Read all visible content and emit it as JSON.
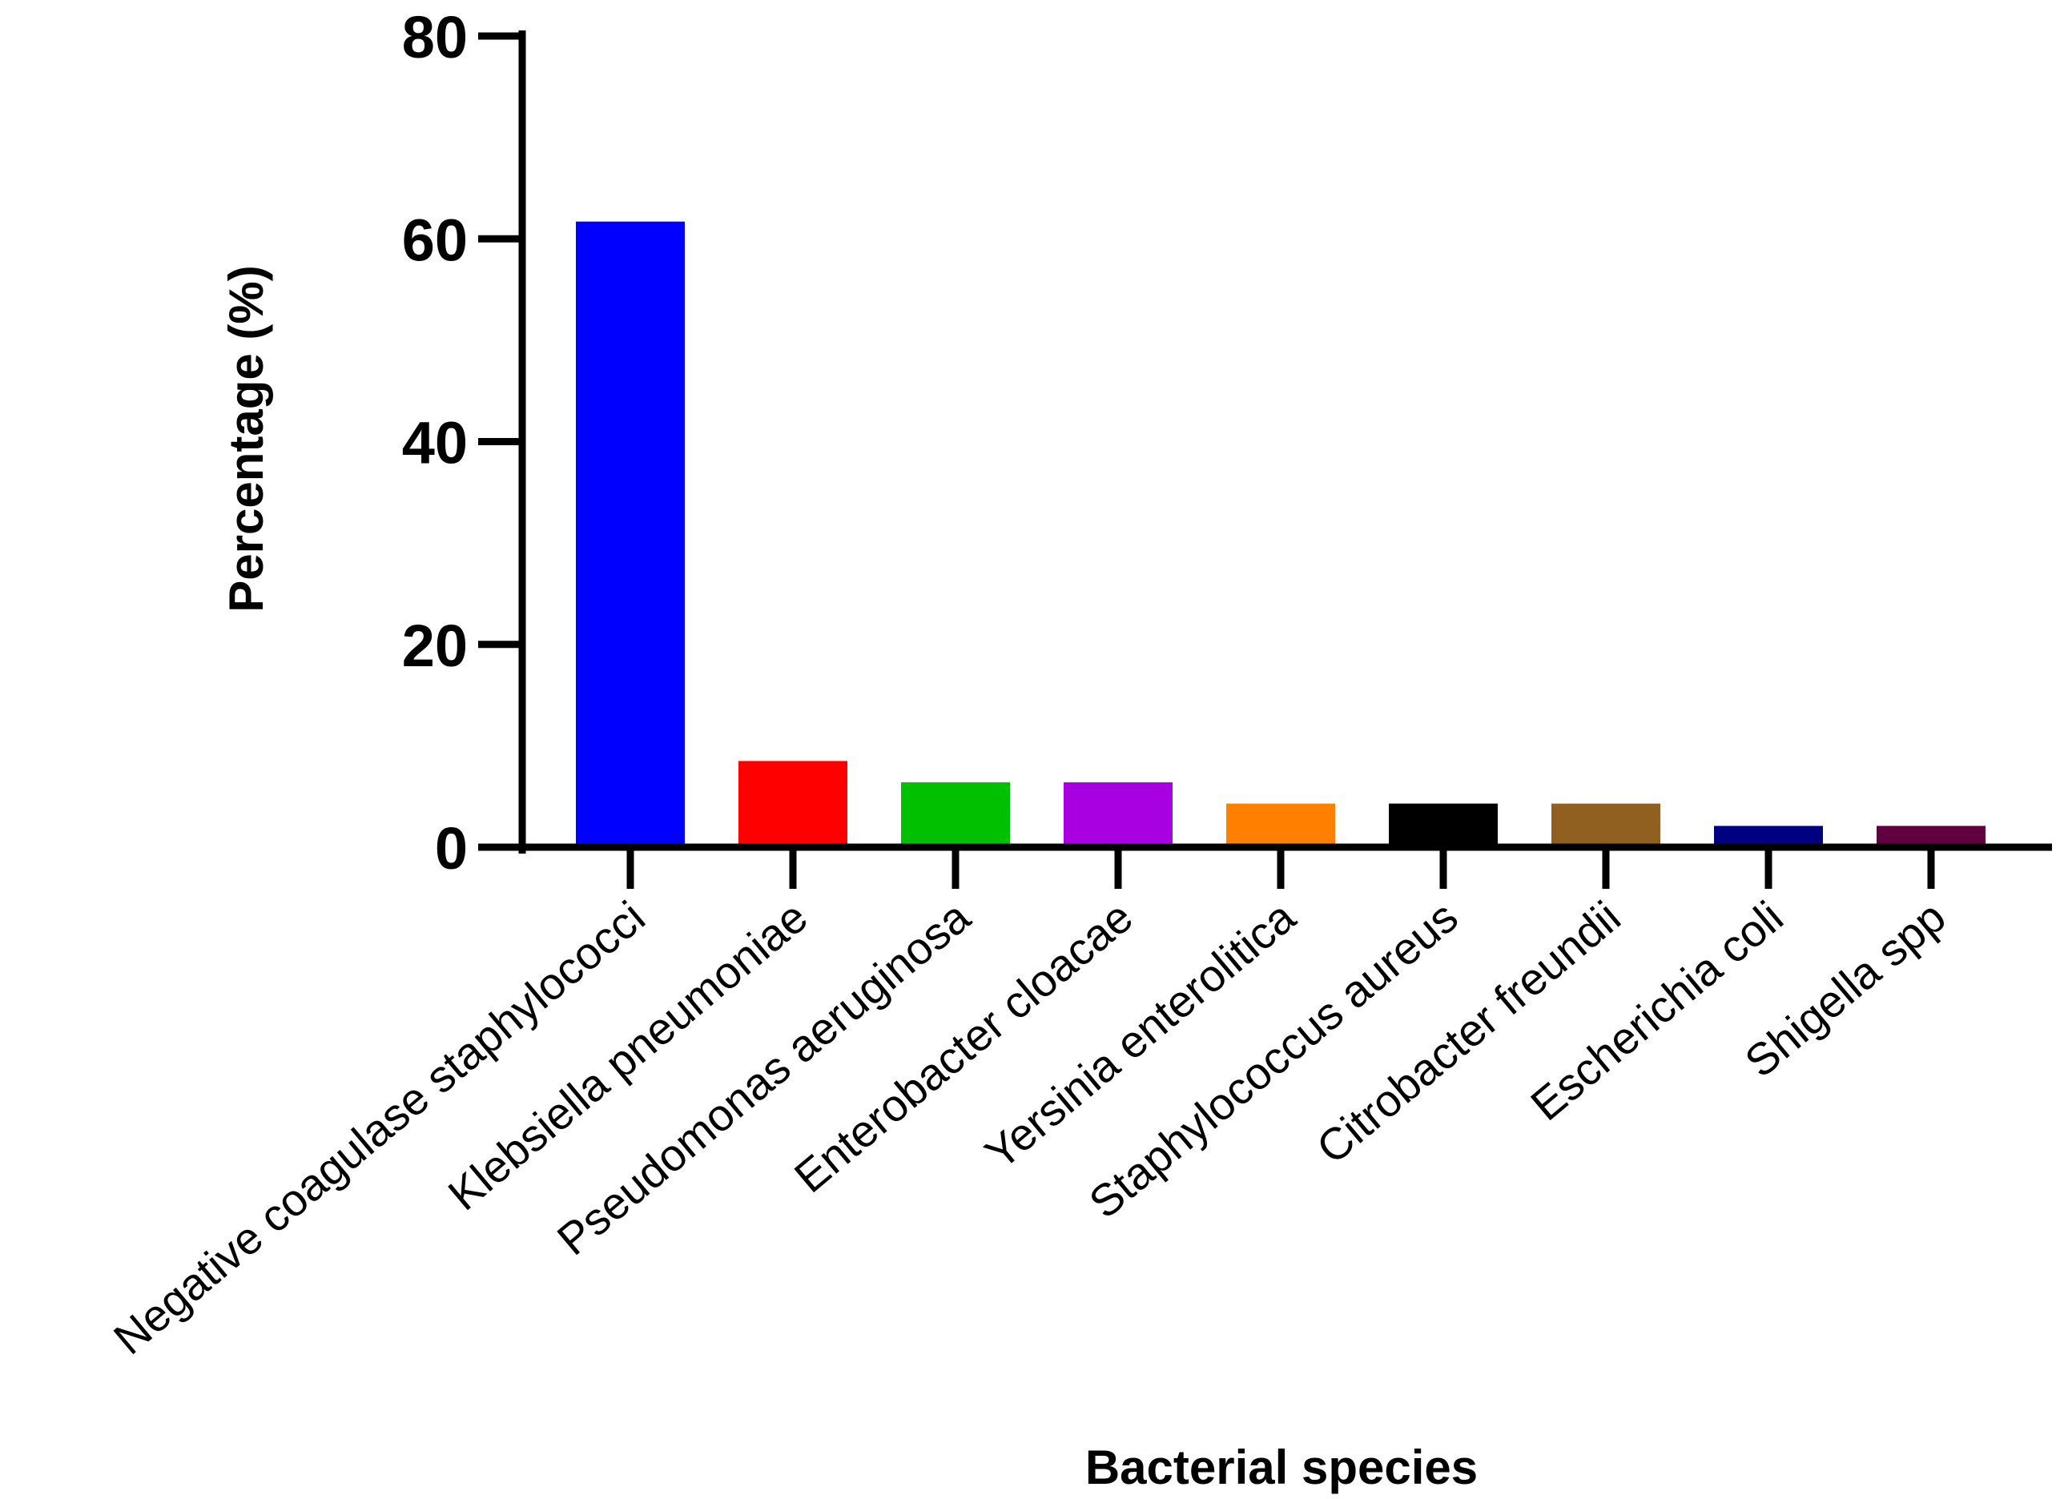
{
  "chart_data": {
    "type": "bar",
    "title": "",
    "xlabel": "Bacterial species",
    "ylabel": "Percentage (%)",
    "ylim": [
      0,
      80
    ],
    "yticks": [
      0,
      20,
      40,
      60,
      80
    ],
    "grid": false,
    "legend": "none",
    "categories": [
      "Negative coagulase staphylococci",
      "Klebsiella pneumoniae",
      "Pseudomonas aeruginosa",
      "Enterobacter cloacae",
      "Yersinia enterolitica",
      "Staphylococcus aureus",
      "Citrobacter freundii",
      "Escherichia coli",
      "Shigella spp"
    ],
    "values": [
      61.7,
      8.5,
      6.4,
      6.4,
      4.3,
      4.3,
      4.3,
      2.1,
      2.1
    ],
    "colors": [
      "#0000ff",
      "#ff0000",
      "#00c000",
      "#a800e0",
      "#ff8000",
      "#000000",
      "#906020",
      "#000080",
      "#600040"
    ]
  }
}
